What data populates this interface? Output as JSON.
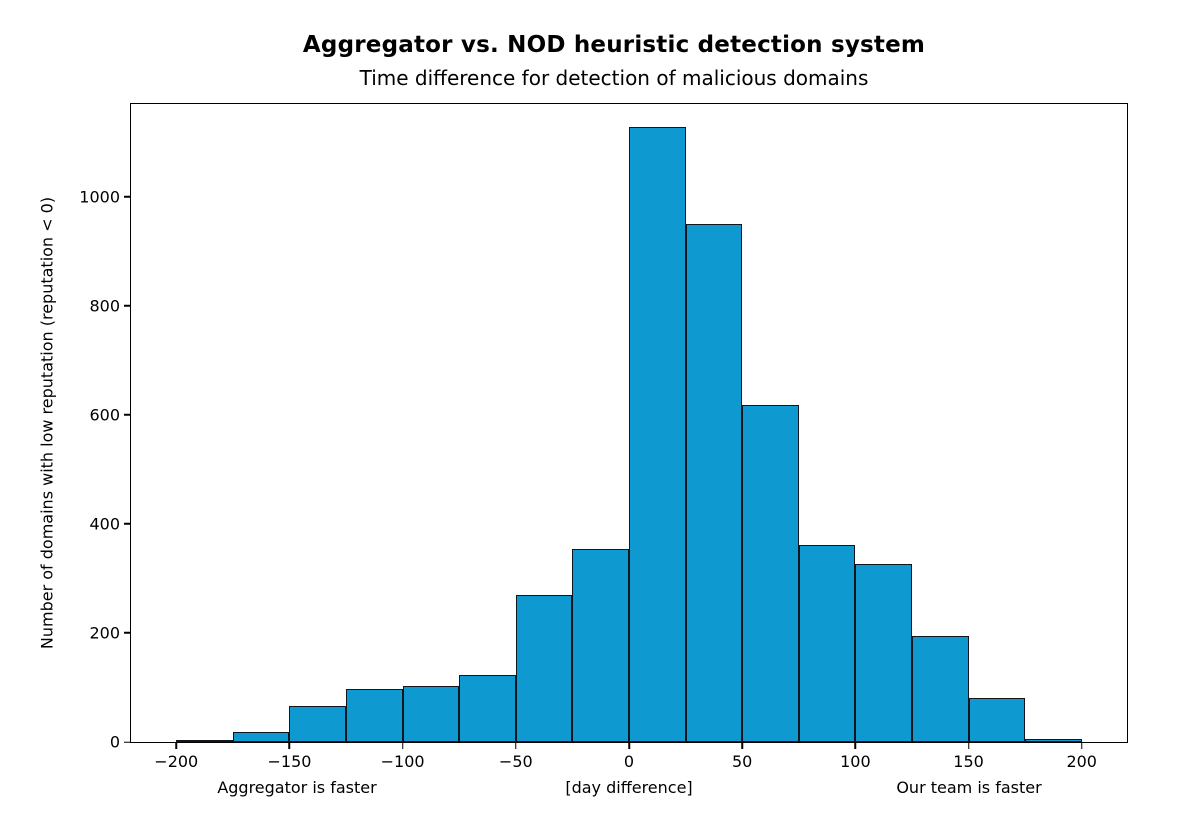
{
  "figure": {
    "title": "Aggregator vs. NOD heuristic detection system",
    "subtitle": "Time difference for detection of malicious domains",
    "ylabel": "Number of domains with low reputation (reputation < 0)",
    "annotation_left": "Aggregator is faster",
    "annotation_center": "[day difference]",
    "annotation_right": "Our team is faster"
  },
  "colors": {
    "bar_fill": "#0e9ad0",
    "bar_edge": "#11161e",
    "axis": "#000000",
    "background": "#ffffff"
  },
  "chart_data": {
    "type": "bar",
    "kind": "histogram",
    "title": "Aggregator vs. NOD heuristic detection system",
    "subtitle": "Time difference for detection of malicious domains",
    "xlabel": "[day difference]",
    "ylabel": "Number of domains with low reputation (reputation < 0)",
    "bin_width_days": 25,
    "bin_edges": [
      -200,
      -175,
      -150,
      -125,
      -100,
      -75,
      -50,
      -25,
      0,
      25,
      50,
      75,
      100,
      125,
      150,
      175,
      200
    ],
    "values": [
      3,
      19,
      66,
      97,
      102,
      123,
      270,
      354,
      1128,
      950,
      618,
      362,
      326,
      194,
      80,
      5
    ],
    "x_tick_values": [
      -200,
      -150,
      -100,
      -50,
      0,
      50,
      100,
      150,
      200
    ],
    "x_tick_labels": [
      "−200",
      "−150",
      "−100",
      "−50",
      "0",
      "50",
      "100",
      "150",
      "200"
    ],
    "y_tick_values": [
      0,
      200,
      400,
      600,
      800,
      1000
    ],
    "y_tick_labels": [
      "0",
      "200",
      "400",
      "600",
      "800",
      "1000"
    ],
    "xlim": [
      -220,
      220
    ],
    "ylim": [
      0,
      1170
    ],
    "grid": false,
    "legend": null
  }
}
